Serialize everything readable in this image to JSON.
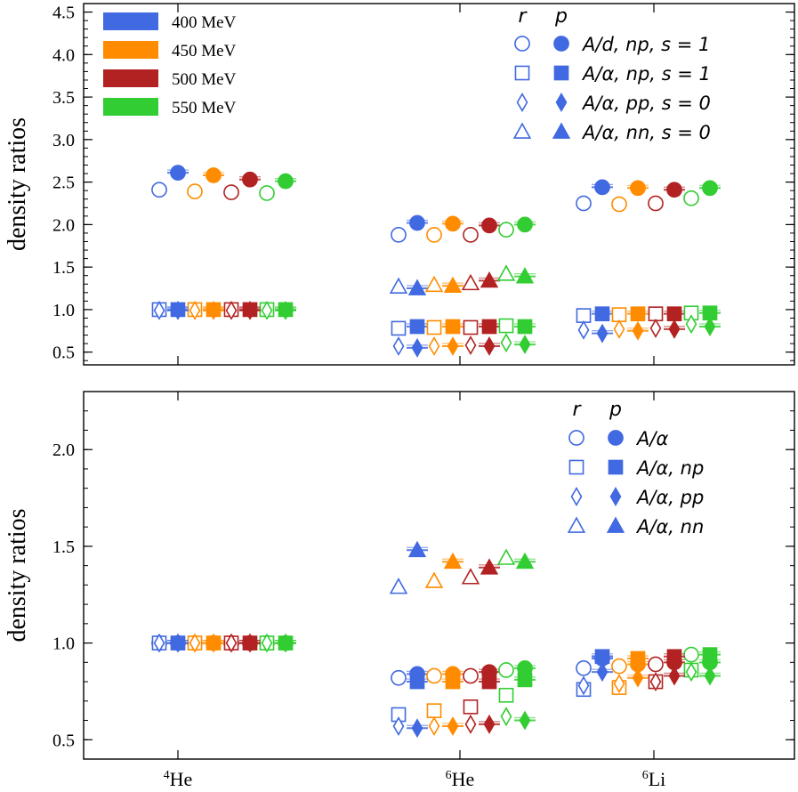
{
  "colors": {
    "400 MeV": "#4169e1",
    "450 MeV": "#ff8c00",
    "500 MeV": "#b22222",
    "550 MeV": "#32cd32",
    "axis": "#000000"
  },
  "chart_data": [
    {
      "type": "scatter",
      "panel": "top",
      "ylabel": "density ratios",
      "ylim": [
        0.35,
        4.6
      ],
      "yticks": [
        "0.5",
        "1.0",
        "1.5",
        "2.0",
        "2.5",
        "3.0",
        "3.5",
        "4.0",
        "4.5"
      ],
      "ytick_values": [
        0.5,
        1.0,
        1.5,
        2.0,
        2.5,
        3.0,
        3.5,
        4.0,
        4.5
      ],
      "categories": [
        "4He",
        "6He",
        "6Li"
      ],
      "energy_legend": [
        "400 MeV",
        "450 MeV",
        "500 MeV",
        "550 MeV"
      ],
      "marker_legend": {
        "header_r": "r",
        "header_p": "p",
        "entries": [
          {
            "marker": "circle",
            "label": "A/d, np, s = 1"
          },
          {
            "marker": "square",
            "label": "A/α, np, s = 1"
          },
          {
            "marker": "diamond",
            "label": "A/α, pp, s = 0"
          },
          {
            "marker": "triangle",
            "label": "A/α, nn, s = 0"
          }
        ]
      },
      "series": [
        {
          "marker": "circle",
          "energies": [
            "400 MeV",
            "450 MeV",
            "500 MeV",
            "550 MeV"
          ],
          "r": [
            [
              2.41,
              2.39,
              2.38,
              2.37
            ],
            [
              1.88,
              1.88,
              1.88,
              1.94
            ],
            [
              2.25,
              2.24,
              2.25,
              2.31
            ]
          ],
          "p": [
            [
              2.61,
              2.58,
              2.53,
              2.51
            ],
            [
              2.02,
              2.01,
              1.99,
              2.0
            ],
            [
              2.44,
              2.43,
              2.41,
              2.43
            ]
          ]
        },
        {
          "marker": "square",
          "energies": [
            "400 MeV",
            "450 MeV",
            "500 MeV",
            "550 MeV"
          ],
          "r": [
            [
              1.0,
              1.0,
              1.0,
              1.0
            ],
            [
              0.78,
              0.79,
              0.79,
              0.81
            ],
            [
              0.93,
              0.94,
              0.95,
              0.96
            ]
          ],
          "p": [
            [
              1.0,
              1.0,
              1.0,
              1.0
            ],
            [
              0.8,
              0.8,
              0.8,
              0.8
            ],
            [
              0.95,
              0.95,
              0.95,
              0.96
            ]
          ]
        },
        {
          "marker": "diamond",
          "energies": [
            "400 MeV",
            "450 MeV",
            "500 MeV",
            "550 MeV"
          ],
          "r": [
            [
              0.99,
              0.99,
              0.99,
              0.99
            ],
            [
              0.57,
              0.57,
              0.58,
              0.61
            ],
            [
              0.76,
              0.77,
              0.78,
              0.83
            ]
          ],
          "p": [
            [
              0.99,
              0.99,
              0.99,
              0.99
            ],
            [
              0.55,
              0.57,
              0.57,
              0.59
            ],
            [
              0.72,
              0.75,
              0.77,
              0.8
            ]
          ]
        },
        {
          "marker": "triangle",
          "energies": [
            "400 MeV",
            "450 MeV",
            "500 MeV",
            "550 MeV"
          ],
          "r": [
            [
              null,
              null,
              null,
              null
            ],
            [
              1.27,
              1.29,
              1.31,
              1.42
            ],
            [
              null,
              null,
              null,
              null
            ]
          ],
          "p": [
            [
              null,
              null,
              null,
              null
            ],
            [
              1.25,
              1.28,
              1.34,
              1.39
            ],
            [
              null,
              null,
              null,
              null
            ]
          ]
        }
      ]
    },
    {
      "type": "scatter",
      "panel": "bottom",
      "ylabel": "density ratios",
      "ylim": [
        0.4,
        2.3
      ],
      "yticks": [
        "0.5",
        "1.0",
        "1.5",
        "2.0"
      ],
      "ytick_values": [
        0.5,
        1.0,
        1.5,
        2.0
      ],
      "categories": [
        "4He",
        "6He",
        "6Li"
      ],
      "xtick_labels": [
        {
          "sup": "4",
          "base": "He"
        },
        {
          "sup": "6",
          "base": "He"
        },
        {
          "sup": "6",
          "base": "Li"
        }
      ],
      "marker_legend": {
        "header_r": "r",
        "header_p": "p",
        "entries": [
          {
            "marker": "circle",
            "label": "A/α"
          },
          {
            "marker": "square",
            "label": "A/α, np"
          },
          {
            "marker": "diamond",
            "label": "A/α, pp"
          },
          {
            "marker": "triangle",
            "label": "A/α, nn"
          }
        ]
      },
      "series": [
        {
          "marker": "circle",
          "energies": [
            "400 MeV",
            "450 MeV",
            "500 MeV",
            "550 MeV"
          ],
          "r": [
            [
              1.0,
              1.0,
              1.0,
              1.0
            ],
            [
              0.82,
              0.83,
              0.83,
              0.86
            ],
            [
              0.87,
              0.88,
              0.89,
              0.94
            ]
          ],
          "p": [
            [
              1.0,
              1.0,
              1.0,
              1.0
            ],
            [
              0.84,
              0.84,
              0.85,
              0.87
            ],
            [
              0.92,
              0.89,
              0.9,
              0.9
            ]
          ]
        },
        {
          "marker": "square",
          "energies": [
            "400 MeV",
            "450 MeV",
            "500 MeV",
            "550 MeV"
          ],
          "r": [
            [
              1.0,
              1.0,
              1.0,
              1.0
            ],
            [
              0.63,
              0.65,
              0.67,
              0.73
            ],
            [
              0.76,
              0.77,
              0.8,
              0.86
            ]
          ],
          "p": [
            [
              1.0,
              1.0,
              1.0,
              1.0
            ],
            [
              0.8,
              0.8,
              0.8,
              0.81
            ],
            [
              0.93,
              0.92,
              0.93,
              0.94
            ]
          ]
        },
        {
          "marker": "diamond",
          "energies": [
            "400 MeV",
            "450 MeV",
            "500 MeV",
            "550 MeV"
          ],
          "r": [
            [
              1.0,
              1.0,
              1.0,
              1.0
            ],
            [
              0.57,
              0.57,
              0.58,
              0.62
            ],
            [
              0.78,
              0.79,
              0.8,
              0.85
            ]
          ],
          "p": [
            [
              1.0,
              1.0,
              1.0,
              1.0
            ],
            [
              0.56,
              0.57,
              0.58,
              0.6
            ],
            [
              0.85,
              0.82,
              0.83,
              0.83
            ]
          ]
        },
        {
          "marker": "triangle",
          "energies": [
            "400 MeV",
            "450 MeV",
            "500 MeV",
            "550 MeV"
          ],
          "r": [
            [
              null,
              null,
              null,
              null
            ],
            [
              1.29,
              1.32,
              1.34,
              1.44
            ],
            [
              null,
              null,
              null,
              null
            ]
          ],
          "p": [
            [
              null,
              null,
              null,
              null
            ],
            [
              1.48,
              1.42,
              1.39,
              1.42
            ],
            [
              null,
              null,
              null,
              null
            ]
          ]
        }
      ]
    }
  ]
}
